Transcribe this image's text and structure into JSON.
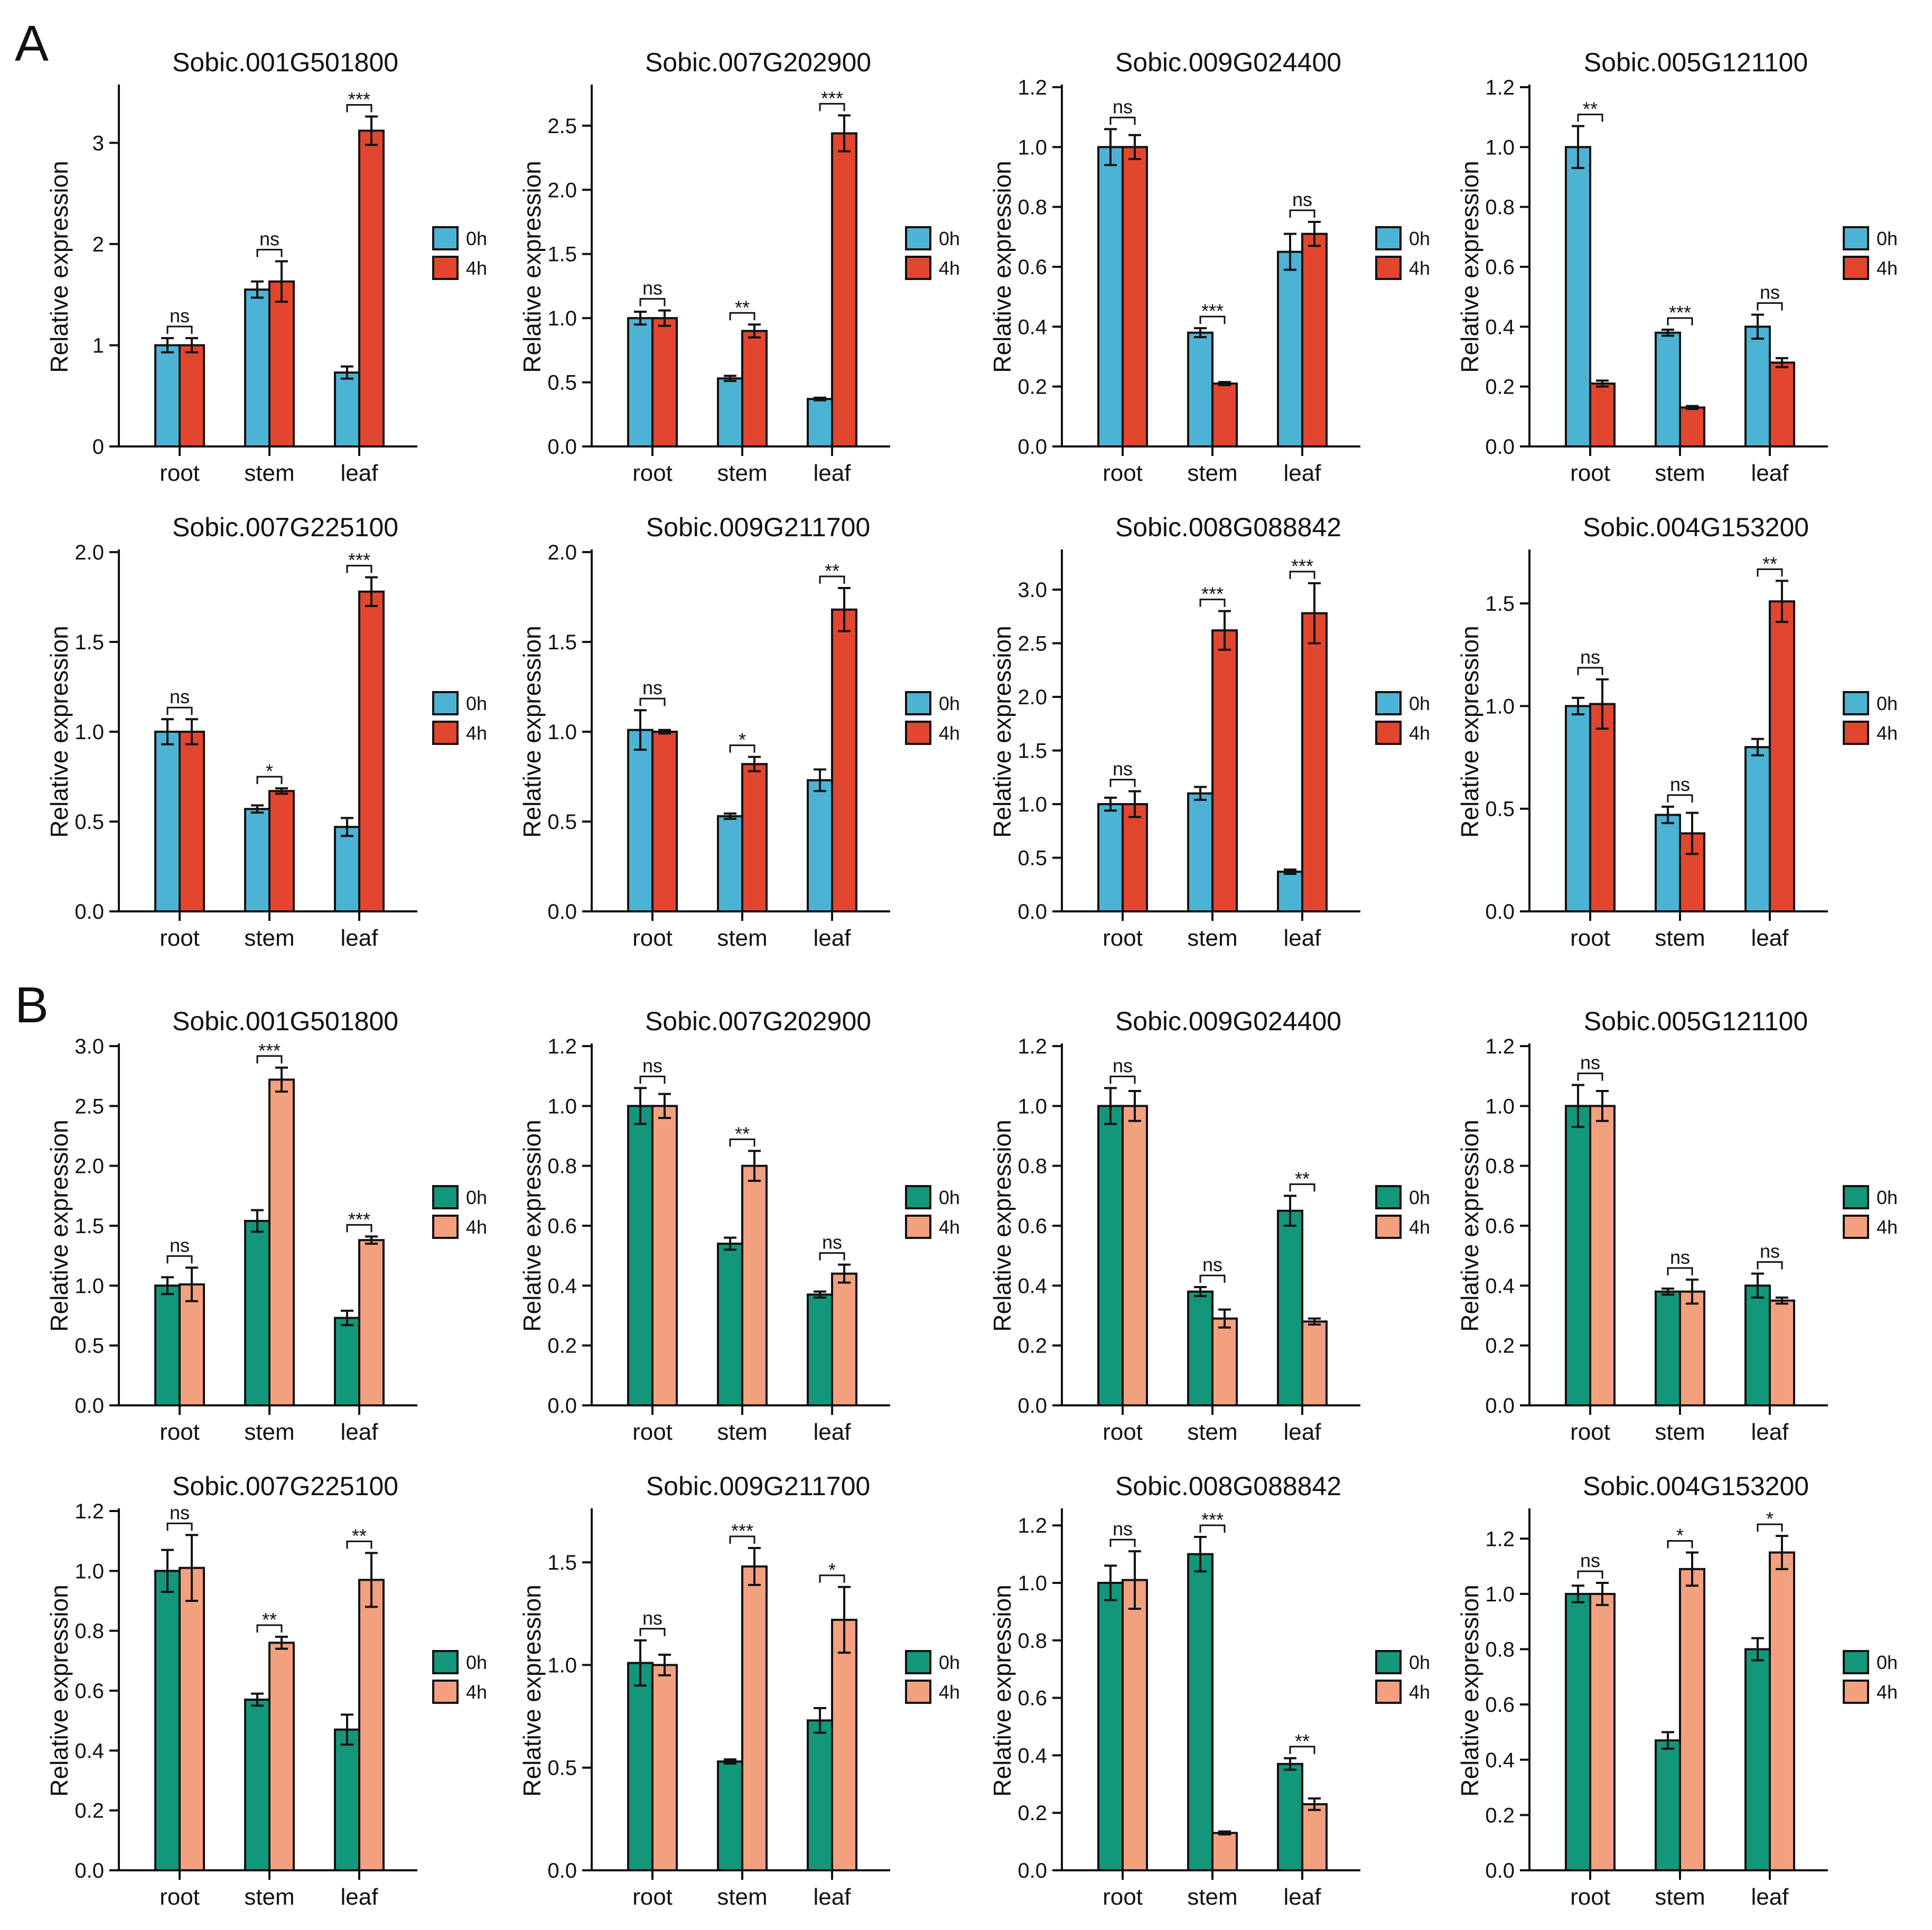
{
  "panel_labels": [
    "A",
    "B"
  ],
  "legend_labels": [
    "0h",
    "4h"
  ],
  "colors": {
    "A": [
      "#4db3d4",
      "#e2462f"
    ],
    "B": [
      "#13977a",
      "#f3a07f"
    ]
  },
  "chart_data": [
    {
      "panel": "A",
      "type": "bar",
      "title": "Sobic.001G501800",
      "ylabel": "Relative expression",
      "categories": [
        "root",
        "stem",
        "leaf"
      ],
      "ylim": [
        0,
        3.55
      ],
      "yticks": [
        0,
        1,
        2,
        3
      ],
      "decimals": 0,
      "series": [
        {
          "name": "0h",
          "values": [
            1.0,
            1.55,
            0.73
          ],
          "errors": [
            0.07,
            0.08,
            0.06
          ]
        },
        {
          "name": "4h",
          "values": [
            1.0,
            1.63,
            3.12
          ],
          "errors": [
            0.07,
            0.2,
            0.14
          ]
        }
      ],
      "annotations": [
        "ns",
        "ns",
        "***"
      ]
    },
    {
      "panel": "A",
      "type": "bar",
      "title": "Sobic.007G202900",
      "ylabel": "Relative expression",
      "categories": [
        "root",
        "stem",
        "leaf"
      ],
      "ylim": [
        0,
        2.8
      ],
      "yticks": [
        0,
        0.5,
        1.0,
        1.5,
        2.0,
        2.5
      ],
      "decimals": 1,
      "series": [
        {
          "name": "0h",
          "values": [
            1.0,
            0.53,
            0.37
          ],
          "errors": [
            0.05,
            0.02,
            0.01
          ]
        },
        {
          "name": "4h",
          "values": [
            1.0,
            0.9,
            2.44
          ],
          "errors": [
            0.06,
            0.05,
            0.14
          ]
        }
      ],
      "annotations": [
        "ns",
        "**",
        "***"
      ]
    },
    {
      "panel": "A",
      "type": "bar",
      "title": "Sobic.009G024400",
      "ylabel": "Relative expression",
      "categories": [
        "root",
        "stem",
        "leaf"
      ],
      "ylim": [
        0,
        1.2
      ],
      "yticks": [
        0,
        0.2,
        0.4,
        0.6,
        0.8,
        1.0,
        1.2
      ],
      "decimals": 1,
      "series": [
        {
          "name": "0h",
          "values": [
            1.0,
            0.38,
            0.65
          ],
          "errors": [
            0.06,
            0.015,
            0.06
          ]
        },
        {
          "name": "4h",
          "values": [
            1.0,
            0.21,
            0.71
          ],
          "errors": [
            0.04,
            0.005,
            0.04
          ]
        }
      ],
      "annotations": [
        "ns",
        "***",
        "ns"
      ]
    },
    {
      "panel": "A",
      "type": "bar",
      "title": "Sobic.005G121100",
      "ylabel": "Relative expression",
      "categories": [
        "root",
        "stem",
        "leaf"
      ],
      "ylim": [
        0,
        1.2
      ],
      "yticks": [
        0,
        0.2,
        0.4,
        0.6,
        0.8,
        1.0,
        1.2
      ],
      "decimals": 1,
      "series": [
        {
          "name": "0h",
          "values": [
            1.0,
            0.38,
            0.4
          ],
          "errors": [
            0.07,
            0.01,
            0.04
          ]
        },
        {
          "name": "4h",
          "values": [
            0.21,
            0.13,
            0.28
          ],
          "errors": [
            0.01,
            0.005,
            0.015
          ]
        }
      ],
      "annotations": [
        "**",
        "***",
        "ns"
      ]
    },
    {
      "panel": "A",
      "type": "bar",
      "title": "Sobic.007G225100",
      "ylabel": "Relative expression",
      "categories": [
        "root",
        "stem",
        "leaf"
      ],
      "ylim": [
        0,
        2.0
      ],
      "yticks": [
        0,
        0.5,
        1.0,
        1.5,
        2.0
      ],
      "decimals": 1,
      "series": [
        {
          "name": "0h",
          "values": [
            1.0,
            0.57,
            0.47
          ],
          "errors": [
            0.07,
            0.02,
            0.05
          ]
        },
        {
          "name": "4h",
          "values": [
            1.0,
            0.67,
            1.78
          ],
          "errors": [
            0.07,
            0.015,
            0.08
          ]
        }
      ],
      "annotations": [
        "ns",
        "*",
        "***"
      ]
    },
    {
      "panel": "A",
      "type": "bar",
      "title": "Sobic.009G211700",
      "ylabel": "Relative expression",
      "categories": [
        "root",
        "stem",
        "leaf"
      ],
      "ylim": [
        0,
        2.0
      ],
      "yticks": [
        0,
        0.5,
        1.0,
        1.5,
        2.0
      ],
      "decimals": 1,
      "series": [
        {
          "name": "0h",
          "values": [
            1.01,
            0.53,
            0.73
          ],
          "errors": [
            0.11,
            0.015,
            0.06
          ]
        },
        {
          "name": "4h",
          "values": [
            1.0,
            0.82,
            1.68
          ],
          "errors": [
            0.01,
            0.04,
            0.12
          ]
        }
      ],
      "annotations": [
        "ns",
        "*",
        "**"
      ]
    },
    {
      "panel": "A",
      "type": "bar",
      "title": "Sobic.008G088842",
      "ylabel": "Relative expression",
      "categories": [
        "root",
        "stem",
        "leaf"
      ],
      "ylim": [
        0,
        3.35
      ],
      "yticks": [
        0,
        0.5,
        1.0,
        1.5,
        2.0,
        2.5,
        3.0
      ],
      "decimals": 1,
      "series": [
        {
          "name": "0h",
          "values": [
            1.0,
            1.1,
            0.37
          ],
          "errors": [
            0.06,
            0.06,
            0.02
          ]
        },
        {
          "name": "4h",
          "values": [
            1.0,
            2.62,
            2.78
          ],
          "errors": [
            0.12,
            0.18,
            0.28
          ]
        }
      ],
      "annotations": [
        "ns",
        "***",
        "***"
      ]
    },
    {
      "panel": "A",
      "type": "bar",
      "title": "Sobic.004G153200",
      "ylabel": "Relative expression",
      "categories": [
        "root",
        "stem",
        "leaf"
      ],
      "ylim": [
        0,
        1.75
      ],
      "yticks": [
        0,
        0.5,
        1.0,
        1.5
      ],
      "decimals": 1,
      "series": [
        {
          "name": "0h",
          "values": [
            1.0,
            0.47,
            0.8
          ],
          "errors": [
            0.04,
            0.04,
            0.04
          ]
        },
        {
          "name": "4h",
          "values": [
            1.01,
            0.38,
            1.51
          ],
          "errors": [
            0.12,
            0.1,
            0.1
          ]
        }
      ],
      "annotations": [
        "ns",
        "ns",
        "**"
      ]
    },
    {
      "panel": "B",
      "type": "bar",
      "title": "Sobic.001G501800",
      "ylabel": "Relative expression",
      "categories": [
        "root",
        "stem",
        "leaf"
      ],
      "ylim": [
        0,
        3.0
      ],
      "yticks": [
        0,
        0.5,
        1.0,
        1.5,
        2.0,
        2.5,
        3.0
      ],
      "decimals": 1,
      "series": [
        {
          "name": "0h",
          "values": [
            1.0,
            1.54,
            0.73
          ],
          "errors": [
            0.07,
            0.09,
            0.06
          ]
        },
        {
          "name": "4h",
          "values": [
            1.01,
            2.72,
            1.38
          ],
          "errors": [
            0.14,
            0.1,
            0.03
          ]
        }
      ],
      "annotations": [
        "ns",
        "***",
        "***"
      ]
    },
    {
      "panel": "B",
      "type": "bar",
      "title": "Sobic.007G202900",
      "ylabel": "Relative expression",
      "categories": [
        "root",
        "stem",
        "leaf"
      ],
      "ylim": [
        0,
        1.2
      ],
      "yticks": [
        0,
        0.2,
        0.4,
        0.6,
        0.8,
        1.0,
        1.2
      ],
      "decimals": 1,
      "series": [
        {
          "name": "0h",
          "values": [
            1.0,
            0.54,
            0.37
          ],
          "errors": [
            0.06,
            0.02,
            0.01
          ]
        },
        {
          "name": "4h",
          "values": [
            1.0,
            0.8,
            0.44
          ],
          "errors": [
            0.04,
            0.05,
            0.03
          ]
        }
      ],
      "annotations": [
        "ns",
        "**",
        "ns"
      ]
    },
    {
      "panel": "B",
      "type": "bar",
      "title": "Sobic.009G024400",
      "ylabel": "Relative expression",
      "categories": [
        "root",
        "stem",
        "leaf"
      ],
      "ylim": [
        0,
        1.2
      ],
      "yticks": [
        0,
        0.2,
        0.4,
        0.6,
        0.8,
        1.0,
        1.2
      ],
      "decimals": 1,
      "series": [
        {
          "name": "0h",
          "values": [
            1.0,
            0.38,
            0.65
          ],
          "errors": [
            0.06,
            0.015,
            0.05
          ]
        },
        {
          "name": "4h",
          "values": [
            1.0,
            0.29,
            0.28
          ],
          "errors": [
            0.05,
            0.03,
            0.01
          ]
        }
      ],
      "annotations": [
        "ns",
        "ns",
        "**"
      ]
    },
    {
      "panel": "B",
      "type": "bar",
      "title": "Sobic.005G121100",
      "ylabel": "Relative expression",
      "categories": [
        "root",
        "stem",
        "leaf"
      ],
      "ylim": [
        0,
        1.2
      ],
      "yticks": [
        0,
        0.2,
        0.4,
        0.6,
        0.8,
        1.0,
        1.2
      ],
      "decimals": 1,
      "series": [
        {
          "name": "0h",
          "values": [
            1.0,
            0.38,
            0.4
          ],
          "errors": [
            0.07,
            0.01,
            0.04
          ]
        },
        {
          "name": "4h",
          "values": [
            1.0,
            0.38,
            0.35
          ],
          "errors": [
            0.05,
            0.04,
            0.01
          ]
        }
      ],
      "annotations": [
        "ns",
        "ns",
        "ns"
      ]
    },
    {
      "panel": "B",
      "type": "bar",
      "title": "Sobic.007G225100",
      "ylabel": "Relative expression",
      "categories": [
        "root",
        "stem",
        "leaf"
      ],
      "ylim": [
        0,
        1.2
      ],
      "yticks": [
        0,
        0.2,
        0.4,
        0.6,
        0.8,
        1.0,
        1.2
      ],
      "decimals": 1,
      "series": [
        {
          "name": "0h",
          "values": [
            1.0,
            0.57,
            0.47
          ],
          "errors": [
            0.07,
            0.02,
            0.05
          ]
        },
        {
          "name": "4h",
          "values": [
            1.01,
            0.76,
            0.97
          ],
          "errors": [
            0.11,
            0.02,
            0.09
          ]
        }
      ],
      "annotations": [
        "ns",
        "**",
        "**"
      ]
    },
    {
      "panel": "B",
      "type": "bar",
      "title": "Sobic.009G211700",
      "ylabel": "Relative expression",
      "categories": [
        "root",
        "stem",
        "leaf"
      ],
      "ylim": [
        0,
        1.75
      ],
      "yticks": [
        0,
        0.5,
        1.0,
        1.5
      ],
      "decimals": 1,
      "series": [
        {
          "name": "0h",
          "values": [
            1.01,
            0.53,
            0.73
          ],
          "errors": [
            0.11,
            0.01,
            0.06
          ]
        },
        {
          "name": "4h",
          "values": [
            1.0,
            1.48,
            1.22
          ],
          "errors": [
            0.05,
            0.09,
            0.16
          ]
        }
      ],
      "annotations": [
        "ns",
        "***",
        "*"
      ]
    },
    {
      "panel": "B",
      "type": "bar",
      "title": "Sobic.008G088842",
      "ylabel": "Relative expression",
      "categories": [
        "root",
        "stem",
        "leaf"
      ],
      "ylim": [
        0,
        1.25
      ],
      "yticks": [
        0,
        0.2,
        0.4,
        0.6,
        0.8,
        1.0,
        1.2
      ],
      "decimals": 1,
      "series": [
        {
          "name": "0h",
          "values": [
            1.0,
            1.1,
            0.37
          ],
          "errors": [
            0.06,
            0.06,
            0.02
          ]
        },
        {
          "name": "4h",
          "values": [
            1.01,
            0.13,
            0.23
          ],
          "errors": [
            0.1,
            0.005,
            0.02
          ]
        }
      ],
      "annotations": [
        "ns",
        "***",
        "**"
      ]
    },
    {
      "panel": "B",
      "type": "bar",
      "title": "Sobic.004G153200",
      "ylabel": "Relative expression",
      "categories": [
        "root",
        "stem",
        "leaf"
      ],
      "ylim": [
        0,
        1.3
      ],
      "yticks": [
        0,
        0.2,
        0.4,
        0.6,
        0.8,
        1.0,
        1.2
      ],
      "decimals": 1,
      "series": [
        {
          "name": "0h",
          "values": [
            1.0,
            0.47,
            0.8
          ],
          "errors": [
            0.03,
            0.03,
            0.04
          ]
        },
        {
          "name": "4h",
          "values": [
            1.0,
            1.09,
            1.15
          ],
          "errors": [
            0.04,
            0.06,
            0.06
          ]
        }
      ],
      "annotations": [
        "ns",
        "*",
        "*"
      ]
    }
  ]
}
